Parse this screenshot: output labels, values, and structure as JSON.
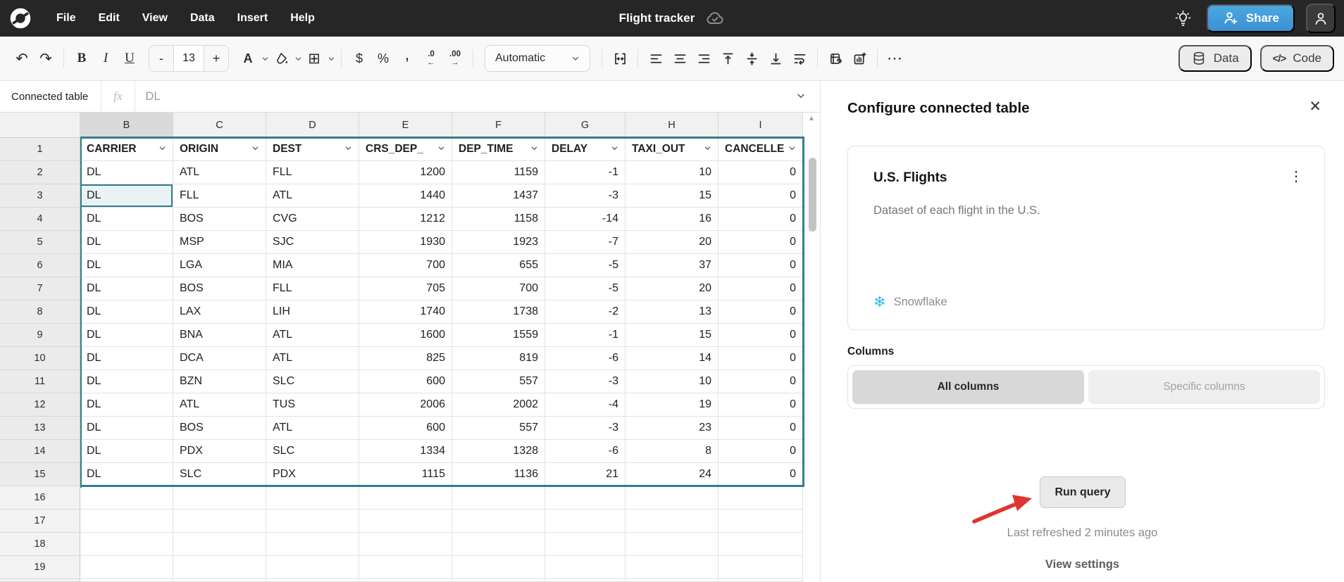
{
  "menubar": {
    "menus": [
      "File",
      "Edit",
      "View",
      "Data",
      "Insert",
      "Help"
    ],
    "title": "Flight tracker",
    "share_label": "Share"
  },
  "toolbar": {
    "font_size": "13",
    "format_selected": "Automatic",
    "data_label": "Data",
    "code_label": "Code",
    "bold": "B",
    "italic": "I",
    "underline": "U",
    "minus": "-",
    "plus": "+",
    "text_color": "A",
    "currency": "$",
    "percent": "%",
    "comma": ",",
    "dec_decrease": ".0",
    "dec_increase": ".00",
    "more": "⋯",
    "code_glyph": "</>"
  },
  "formula_bar": {
    "name_box": "Connected table",
    "fx_label": "fx",
    "value": "DL"
  },
  "sheet": {
    "col_letters": [
      "B",
      "C",
      "D",
      "E",
      "F",
      "G",
      "H",
      "I"
    ],
    "row_numbers": [
      1,
      2,
      3,
      4,
      5,
      6,
      7,
      8,
      9,
      10,
      11,
      12,
      13,
      14,
      15,
      16,
      17,
      18,
      19
    ],
    "headers": [
      "CARRIER",
      "ORIGIN",
      "DEST",
      "CRS_DEP_",
      "DEP_TIME",
      "DELAY",
      "TAXI_OUT",
      "CANCELLE"
    ],
    "rows": [
      [
        "DL",
        "ATL",
        "FLL",
        "1200",
        "1159",
        "-1",
        "10",
        "0"
      ],
      [
        "DL",
        "FLL",
        "ATL",
        "1440",
        "1437",
        "-3",
        "15",
        "0"
      ],
      [
        "DL",
        "BOS",
        "CVG",
        "1212",
        "1158",
        "-14",
        "16",
        "0"
      ],
      [
        "DL",
        "MSP",
        "SJC",
        "1930",
        "1923",
        "-7",
        "20",
        "0"
      ],
      [
        "DL",
        "LGA",
        "MIA",
        "700",
        "655",
        "-5",
        "37",
        "0"
      ],
      [
        "DL",
        "BOS",
        "FLL",
        "705",
        "700",
        "-5",
        "20",
        "0"
      ],
      [
        "DL",
        "LAX",
        "LIH",
        "1740",
        "1738",
        "-2",
        "13",
        "0"
      ],
      [
        "DL",
        "BNA",
        "ATL",
        "1600",
        "1559",
        "-1",
        "15",
        "0"
      ],
      [
        "DL",
        "DCA",
        "ATL",
        "825",
        "819",
        "-6",
        "14",
        "0"
      ],
      [
        "DL",
        "BZN",
        "SLC",
        "600",
        "557",
        "-3",
        "10",
        "0"
      ],
      [
        "DL",
        "ATL",
        "TUS",
        "2006",
        "2002",
        "-4",
        "19",
        "0"
      ],
      [
        "DL",
        "BOS",
        "ATL",
        "600",
        "557",
        "-3",
        "23",
        "0"
      ],
      [
        "DL",
        "PDX",
        "SLC",
        "1334",
        "1328",
        "-6",
        "8",
        "0"
      ],
      [
        "DL",
        "SLC",
        "PDX",
        "1115",
        "1136",
        "21",
        "24",
        "0"
      ]
    ],
    "active_cell_value": "DL",
    "empty_row_count": 4
  },
  "panel": {
    "title": "Configure connected table",
    "card": {
      "title": "U.S. Flights",
      "description": "Dataset of each flight in the U.S.",
      "source": "Snowflake"
    },
    "columns_label": "Columns",
    "segments": {
      "all": "All columns",
      "specific": "Specific columns"
    },
    "run_query_label": "Run query",
    "last_refreshed": "Last refreshed 2 minutes ago",
    "view_settings": "View settings"
  },
  "colors": {
    "accent_teal": "#347E8C",
    "active_cell_fill": "#E9F3F6",
    "share_blue": "#3F9DD9",
    "snowflake_blue": "#29B5E8",
    "annotation_red": "#E0342E",
    "topbar_dark": "#262626"
  }
}
